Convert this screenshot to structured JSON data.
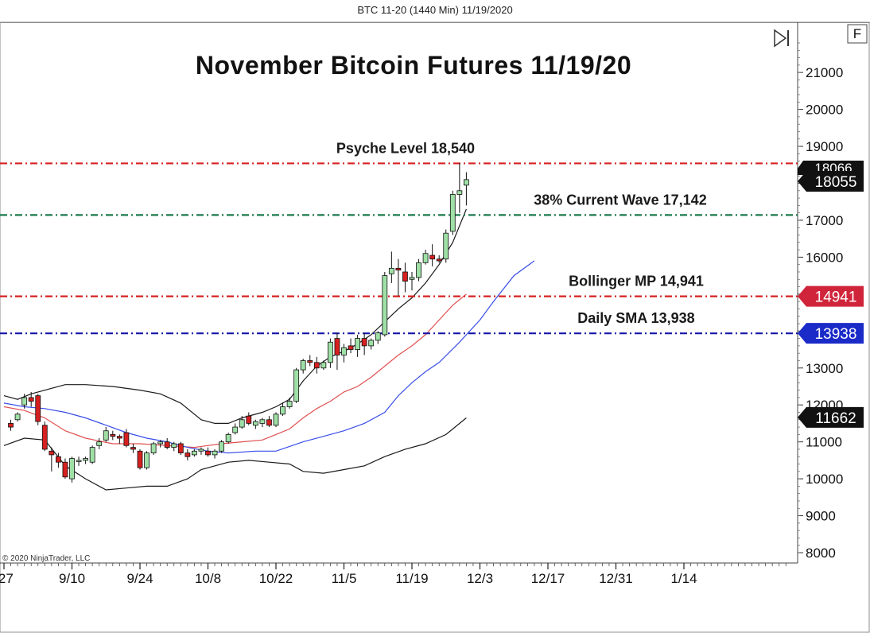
{
  "window": {
    "title": "BTC 11-20 (1440 Min)  11/19/2020"
  },
  "toolbar": {
    "f_button_label": "F",
    "play_icon": "skip-forward-icon"
  },
  "copyright": "© 2020 NinjaTrader, LLC",
  "chart_data": {
    "type": "candlestick",
    "title": "November Bitcoin Futures 11/19/20",
    "y_axis": {
      "ticks": [
        8000,
        9000,
        10000,
        11000,
        12000,
        13000,
        14000,
        15000,
        16000,
        17000,
        18000,
        19000,
        20000,
        21000
      ],
      "tick_labels": [
        "8000",
        "9000",
        "10000",
        "11000",
        "12000",
        "13000",
        "14000",
        "15000",
        "16000",
        "17000",
        "18000",
        "19000",
        "20000",
        "21000"
      ],
      "ylim": [
        7800,
        22200
      ],
      "side": "right"
    },
    "x_axis": {
      "tick_labels": [
        "/27",
        "9/10",
        "9/24",
        "10/8",
        "10/22",
        "11/5",
        "11/19",
        "12/3",
        "12/17",
        "12/31",
        "1/14"
      ],
      "tick_bar_index": [
        0,
        10,
        20,
        30,
        40,
        50,
        60,
        70,
        80,
        90,
        100
      ]
    },
    "candles": [
      [
        1,
        11500,
        11600,
        11300,
        11400
      ],
      [
        2,
        11600,
        11800,
        11550,
        11750
      ],
      [
        3,
        12000,
        12300,
        11900,
        12200
      ],
      [
        4,
        12200,
        12350,
        11950,
        12100
      ],
      [
        5,
        12250,
        12300,
        11450,
        11550
      ],
      [
        6,
        11450,
        11550,
        10750,
        10800
      ],
      [
        7,
        10750,
        10850,
        10200,
        10650
      ],
      [
        8,
        10600,
        10700,
        10300,
        10450
      ],
      [
        9,
        10450,
        10550,
        10000,
        10050
      ],
      [
        10,
        10000,
        10600,
        9900,
        10550
      ],
      [
        11,
        10500,
        10600,
        10350,
        10500
      ],
      [
        12,
        10500,
        10600,
        10400,
        10550
      ],
      [
        13,
        10450,
        10900,
        10400,
        10850
      ],
      [
        14,
        10900,
        11100,
        10800,
        11000
      ],
      [
        15,
        11050,
        11400,
        11000,
        11300
      ],
      [
        16,
        11200,
        11300,
        11050,
        11150
      ],
      [
        17,
        11150,
        11200,
        10950,
        11100
      ],
      [
        18,
        11250,
        11350,
        10850,
        10900
      ],
      [
        19,
        10850,
        10950,
        10700,
        10800
      ],
      [
        20,
        10750,
        10800,
        10250,
        10300
      ],
      [
        21,
        10300,
        10750,
        10250,
        10700
      ],
      [
        22,
        10700,
        11000,
        10650,
        10950
      ],
      [
        23,
        10950,
        11050,
        10850,
        11000
      ],
      [
        24,
        11000,
        11100,
        10800,
        10850
      ],
      [
        25,
        10850,
        11000,
        10750,
        10950
      ],
      [
        26,
        10950,
        11000,
        10650,
        10700
      ],
      [
        27,
        10700,
        10800,
        10500,
        10600
      ],
      [
        28,
        10650,
        10800,
        10600,
        10750
      ],
      [
        29,
        10750,
        10850,
        10650,
        10800
      ],
      [
        30,
        10750,
        10850,
        10600,
        10650
      ],
      [
        31,
        10650,
        10800,
        10550,
        10750
      ],
      [
        32,
        10750,
        11050,
        10700,
        11000
      ],
      [
        33,
        11000,
        11250,
        10950,
        11200
      ],
      [
        34,
        11250,
        11500,
        11200,
        11400
      ],
      [
        35,
        11400,
        11700,
        11350,
        11600
      ],
      [
        36,
        11700,
        11800,
        11450,
        11500
      ],
      [
        37,
        11450,
        11600,
        11350,
        11550
      ],
      [
        38,
        11500,
        11650,
        11400,
        11600
      ],
      [
        39,
        11600,
        11700,
        11400,
        11450
      ],
      [
        40,
        11450,
        11800,
        11400,
        11750
      ],
      [
        41,
        11750,
        12050,
        11700,
        11950
      ],
      [
        42,
        11950,
        12200,
        11900,
        12100
      ],
      [
        43,
        12100,
        13000,
        12050,
        12950
      ],
      [
        44,
        12950,
        13250,
        12850,
        13200
      ],
      [
        45,
        13200,
        13350,
        13050,
        13150
      ],
      [
        46,
        13150,
        13300,
        12850,
        13000
      ],
      [
        47,
        13000,
        13200,
        12950,
        13150
      ],
      [
        48,
        13150,
        13800,
        13000,
        13700
      ],
      [
        49,
        13800,
        13950,
        12950,
        13350
      ],
      [
        50,
        13350,
        13650,
        13150,
        13550
      ],
      [
        51,
        13600,
        13800,
        13400,
        13500
      ],
      [
        52,
        13500,
        13900,
        13300,
        13800
      ],
      [
        53,
        13800,
        13950,
        13350,
        13600
      ],
      [
        54,
        13600,
        13800,
        13500,
        13750
      ],
      [
        55,
        13750,
        14000,
        13650,
        13950
      ],
      [
        56,
        13900,
        15600,
        13850,
        15500
      ],
      [
        57,
        15550,
        16150,
        15300,
        15700
      ],
      [
        58,
        15700,
        15950,
        14950,
        15650
      ],
      [
        59,
        15600,
        15850,
        15050,
        15350
      ],
      [
        60,
        15400,
        15600,
        15100,
        15450
      ],
      [
        61,
        15450,
        15950,
        15350,
        15850
      ],
      [
        62,
        15850,
        16200,
        15800,
        16100
      ],
      [
        63,
        16050,
        16350,
        15750,
        15950
      ],
      [
        64,
        15950,
        16050,
        15850,
        15900
      ],
      [
        65,
        15950,
        16750,
        15850,
        16650
      ],
      [
        66,
        16700,
        17800,
        16600,
        17700
      ],
      [
        67,
        17700,
        18550,
        17200,
        17800
      ],
      [
        68,
        17950,
        18300,
        17400,
        18100
      ]
    ],
    "candle_format": [
      "bar_index",
      "open",
      "high",
      "low",
      "close"
    ],
    "bollinger_upper": [
      [
        0,
        12250
      ],
      [
        2,
        12150
      ],
      [
        4,
        12300
      ],
      [
        7,
        12450
      ],
      [
        9,
        12550
      ],
      [
        12,
        12550
      ],
      [
        16,
        12500
      ],
      [
        20,
        12400
      ],
      [
        23,
        12300
      ],
      [
        26,
        12050
      ],
      [
        29,
        11600
      ],
      [
        31,
        11500
      ],
      [
        33,
        11500
      ],
      [
        35,
        11650
      ],
      [
        38,
        11800
      ],
      [
        40,
        11950
      ],
      [
        42,
        12150
      ],
      [
        44,
        12650
      ],
      [
        46,
        13050
      ],
      [
        48,
        13300
      ],
      [
        50,
        13450
      ],
      [
        52,
        13650
      ],
      [
        54,
        13900
      ],
      [
        56,
        14250
      ],
      [
        58,
        14600
      ],
      [
        60,
        14900
      ],
      [
        62,
        15300
      ],
      [
        64,
        15800
      ],
      [
        66,
        16400
      ],
      [
        68,
        17300
      ]
    ],
    "bollinger_middle": [
      [
        0,
        11950
      ],
      [
        3,
        11850
      ],
      [
        6,
        11650
      ],
      [
        9,
        11300
      ],
      [
        12,
        11100
      ],
      [
        16,
        10950
      ],
      [
        20,
        10950
      ],
      [
        24,
        10900
      ],
      [
        28,
        10850
      ],
      [
        32,
        10950
      ],
      [
        35,
        11000
      ],
      [
        38,
        11050
      ],
      [
        40,
        11200
      ],
      [
        42,
        11350
      ],
      [
        44,
        11650
      ],
      [
        46,
        11900
      ],
      [
        48,
        12100
      ],
      [
        50,
        12350
      ],
      [
        52,
        12500
      ],
      [
        54,
        12750
      ],
      [
        56,
        13050
      ],
      [
        58,
        13350
      ],
      [
        60,
        13600
      ],
      [
        62,
        13900
      ],
      [
        64,
        14300
      ],
      [
        66,
        14700
      ],
      [
        68,
        15000
      ]
    ],
    "bollinger_lower": [
      [
        0,
        10900
      ],
      [
        3,
        11100
      ],
      [
        6,
        11050
      ],
      [
        9,
        10350
      ],
      [
        12,
        10000
      ],
      [
        15,
        9700
      ],
      [
        18,
        9750
      ],
      [
        21,
        9800
      ],
      [
        24,
        9800
      ],
      [
        27,
        10000
      ],
      [
        29,
        10250
      ],
      [
        33,
        10450
      ],
      [
        36,
        10500
      ],
      [
        39,
        10450
      ],
      [
        42,
        10400
      ],
      [
        44,
        10200
      ],
      [
        47,
        10150
      ],
      [
        50,
        10250
      ],
      [
        53,
        10350
      ],
      [
        56,
        10600
      ],
      [
        59,
        10800
      ],
      [
        62,
        10950
      ],
      [
        65,
        11200
      ],
      [
        68,
        11650
      ]
    ],
    "sma_line": [
      [
        0,
        12050
      ],
      [
        3,
        11950
      ],
      [
        6,
        11900
      ],
      [
        9,
        11800
      ],
      [
        12,
        11650
      ],
      [
        15,
        11450
      ],
      [
        18,
        11250
      ],
      [
        21,
        11100
      ],
      [
        24,
        11000
      ],
      [
        27,
        10850
      ],
      [
        30,
        10750
      ],
      [
        33,
        10700
      ],
      [
        37,
        10750
      ],
      [
        40,
        10750
      ],
      [
        44,
        11000
      ],
      [
        47,
        11150
      ],
      [
        50,
        11300
      ],
      [
        53,
        11500
      ],
      [
        56,
        11800
      ],
      [
        58,
        12250
      ],
      [
        60,
        12600
      ],
      [
        62,
        12900
      ],
      [
        64,
        13150
      ],
      [
        67,
        13700
      ],
      [
        70,
        14300
      ],
      [
        72,
        14800
      ],
      [
        75,
        15500
      ],
      [
        78,
        15900
      ]
    ],
    "horizontal_lines": [
      {
        "label": "Psyche Level 18,540",
        "value": 18540,
        "color": "#d62020"
      },
      {
        "label": "38% Current Wave 17,142",
        "value": 17142,
        "color": "#1a7a4a"
      },
      {
        "label": "Bollinger MP 14,941",
        "value": 14941,
        "color": "#d62020"
      },
      {
        "label": "Daily SMA 13,938",
        "value": 13938,
        "color": "#1515a8"
      }
    ],
    "price_markers": [
      {
        "text": "18055",
        "value": 18055,
        "color": "#111111",
        "behind_text": "18066"
      },
      {
        "text": "14941",
        "value": 14941,
        "color": "#d0243a"
      },
      {
        "text": "13938",
        "value": 13938,
        "color": "#1a2bc8"
      },
      {
        "text": "11662",
        "value": 11662,
        "color": "#111111"
      }
    ],
    "colors": {
      "up_candle": "#9fe0a6",
      "down_candle": "#d62020",
      "bollinger_outer": "#1a1a1a",
      "bollinger_middle": "#e05050",
      "sma": "#3a4ee8"
    }
  }
}
